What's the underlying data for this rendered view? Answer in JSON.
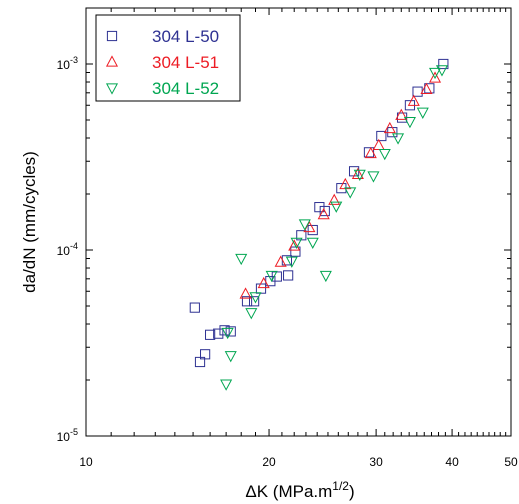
{
  "chart_data": {
    "type": "scatter",
    "title": "",
    "xlabel": "ΔK (MPa.m",
    "xlabel_sup": "1/2",
    "xlabel_end": ")",
    "ylabel": "da/dN (mm/cycles)",
    "x_scale": "log",
    "y_scale": "log",
    "xlim": [
      10,
      50
    ],
    "ylim": [
      1e-05,
      0.002
    ],
    "grid": false,
    "legend_position": "top-left",
    "x_ticks": [
      {
        "value": 10,
        "label": "10"
      },
      {
        "value": 20,
        "label": "20"
      },
      {
        "value": 30,
        "label": "30"
      },
      {
        "value": 40,
        "label": "40"
      },
      {
        "value": 50,
        "label": "50"
      }
    ],
    "y_ticks": [
      {
        "value": 1e-05,
        "base": "10",
        "exp": "-5"
      },
      {
        "value": 0.0001,
        "base": "10",
        "exp": "-4"
      },
      {
        "value": 0.001,
        "base": "10",
        "exp": "-3"
      }
    ],
    "series": [
      {
        "name": "304 L-50",
        "marker": "square",
        "color": "#2e3192",
        "points": [
          [
            15.1,
            4.9e-05
          ],
          [
            15.4,
            2.5e-05
          ],
          [
            15.7,
            2.75e-05
          ],
          [
            16.0,
            3.5e-05
          ],
          [
            16.5,
            3.55e-05
          ],
          [
            16.9,
            3.7e-05
          ],
          [
            17.3,
            3.65e-05
          ],
          [
            18.4,
            5.3e-05
          ],
          [
            18.9,
            5.3e-05
          ],
          [
            19.4,
            6.2e-05
          ],
          [
            20.1,
            6.8e-05
          ],
          [
            20.6,
            7.2e-05
          ],
          [
            21.5,
            7.3e-05
          ],
          [
            21.4,
            8.8e-05
          ],
          [
            22.1,
            9.8e-05
          ],
          [
            22.6,
            0.00012
          ],
          [
            23.6,
            0.000128
          ],
          [
            24.2,
            0.00017
          ],
          [
            24.7,
            0.000162
          ],
          [
            26.3,
            0.000215
          ],
          [
            27.6,
            0.000265
          ],
          [
            29.2,
            0.000335
          ],
          [
            30.6,
            0.00041
          ],
          [
            31.9,
            0.00043
          ],
          [
            33.1,
            0.000515
          ],
          [
            34.1,
            0.0006
          ],
          [
            35.1,
            0.00071
          ],
          [
            36.7,
            0.00074
          ],
          [
            38.7,
            0.001
          ]
        ]
      },
      {
        "name": "304 L-51",
        "marker": "triangle-up",
        "color": "#ed1c24",
        "points": [
          [
            18.3,
            5.8e-05
          ],
          [
            19.6,
            6.6e-05
          ],
          [
            20.9,
            8.6e-05
          ],
          [
            22.0,
            0.000105
          ],
          [
            23.3,
            0.000132
          ],
          [
            24.6,
            0.000155
          ],
          [
            25.6,
            0.000185
          ],
          [
            26.7,
            0.000225
          ],
          [
            28.0,
            0.000255
          ],
          [
            29.4,
            0.00033
          ],
          [
            30.3,
            0.000365
          ],
          [
            31.6,
            0.00045
          ],
          [
            33.0,
            0.00053
          ],
          [
            34.6,
            0.00063
          ],
          [
            36.3,
            0.00073
          ],
          [
            37.5,
            0.00084
          ]
        ]
      },
      {
        "name": "304 L-52",
        "marker": "triangle-down",
        "color": "#00a651",
        "points": [
          [
            17.0,
            1.9e-05
          ],
          [
            17.3,
            2.7e-05
          ],
          [
            17.1,
            3.6e-05
          ],
          [
            18.0,
            9e-05
          ],
          [
            18.7,
            4.6e-05
          ],
          [
            19.0,
            5.6e-05
          ],
          [
            20.2,
            7.3e-05
          ],
          [
            21.8,
            8.7e-05
          ],
          [
            22.2,
            0.00011
          ],
          [
            22.9,
            0.000138
          ],
          [
            23.6,
            0.00011
          ],
          [
            25.8,
            0.000172
          ],
          [
            24.8,
            7.3e-05
          ],
          [
            27.2,
            0.000205
          ],
          [
            28.2,
            0.000255
          ],
          [
            29.7,
            0.00025
          ],
          [
            31.0,
            0.00033
          ],
          [
            32.6,
            0.0004
          ],
          [
            34.1,
            0.00049
          ],
          [
            35.8,
            0.00055
          ],
          [
            37.5,
            0.0009
          ],
          [
            38.5,
            0.00093
          ]
        ]
      }
    ]
  }
}
